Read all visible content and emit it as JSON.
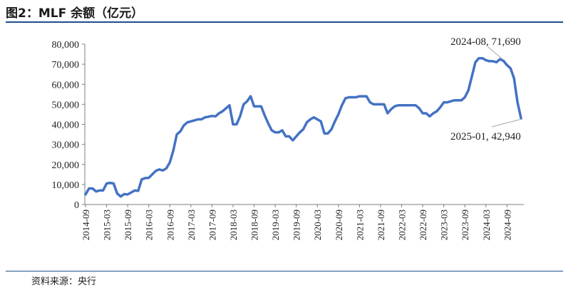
{
  "title": "图2：MLF 余额（亿元）",
  "source": "资料来源：央行",
  "chart_data": {
    "type": "line",
    "title": "MLF 余额（亿元）",
    "xlabel": "",
    "ylabel": "",
    "ylim": [
      0,
      80000
    ],
    "yticks": [
      "0",
      "10,000",
      "20,000",
      "30,000",
      "40,000",
      "50,000",
      "60,000",
      "70,000",
      "80,000"
    ],
    "xticks": [
      "2014-09",
      "2015-03",
      "2015-09",
      "2016-03",
      "2016-09",
      "2017-03",
      "2017-09",
      "2018-03",
      "2018-09",
      "2019-03",
      "2019-09",
      "2020-03",
      "2020-09",
      "2021-03",
      "2021-09",
      "2022-03",
      "2022-09",
      "2023-03",
      "2023-09",
      "2024-03",
      "2024-09"
    ],
    "color": "#4472c4",
    "annotations": [
      {
        "text": "2024-08, 71,690",
        "x": "2024-08",
        "y": 71690
      },
      {
        "text": "2025-01, 42,940",
        "x": "2025-01",
        "y": 42940
      }
    ],
    "series": [
      {
        "x": [
          "2014-09",
          "2014-10",
          "2014-11",
          "2014-12",
          "2015-01",
          "2015-02",
          "2015-03",
          "2015-04",
          "2015-05",
          "2015-06",
          "2015-07",
          "2015-08",
          "2015-09",
          "2015-10",
          "2015-11",
          "2015-12",
          "2016-01",
          "2016-02",
          "2016-03",
          "2016-04",
          "2016-05",
          "2016-06",
          "2016-07",
          "2016-08",
          "2016-09",
          "2016-10",
          "2016-11",
          "2016-12",
          "2017-01",
          "2017-02",
          "2017-03",
          "2017-04",
          "2017-05",
          "2017-06",
          "2017-07",
          "2017-08",
          "2017-09",
          "2017-10",
          "2017-11",
          "2017-12",
          "2018-01",
          "2018-02",
          "2018-03",
          "2018-04",
          "2018-05",
          "2018-06",
          "2018-07",
          "2018-08",
          "2018-09",
          "2018-10",
          "2018-11",
          "2018-12",
          "2019-01",
          "2019-02",
          "2019-03",
          "2019-04",
          "2019-05",
          "2019-06",
          "2019-07",
          "2019-08",
          "2019-09",
          "2019-10",
          "2019-11",
          "2019-12",
          "2020-01",
          "2020-02",
          "2020-03",
          "2020-04",
          "2020-05",
          "2020-06",
          "2020-07",
          "2020-08",
          "2020-09",
          "2020-10",
          "2020-11",
          "2020-12",
          "2021-01",
          "2021-02",
          "2021-03",
          "2021-04",
          "2021-05",
          "2021-06",
          "2021-07",
          "2021-08",
          "2021-09",
          "2021-10",
          "2021-11",
          "2021-12",
          "2022-01",
          "2022-02",
          "2022-03",
          "2022-04",
          "2022-05",
          "2022-06",
          "2022-07",
          "2022-08",
          "2022-09",
          "2022-10",
          "2022-11",
          "2022-12",
          "2023-01",
          "2023-02",
          "2023-03",
          "2023-04",
          "2023-05",
          "2023-06",
          "2023-07",
          "2023-08",
          "2023-09",
          "2023-10",
          "2023-11",
          "2023-12",
          "2024-01",
          "2024-02",
          "2024-03",
          "2024-04",
          "2024-05",
          "2024-06",
          "2024-07",
          "2024-08",
          "2024-09",
          "2024-10",
          "2024-11",
          "2024-12",
          "2025-01"
        ],
        "values": [
          5000,
          8000,
          8000,
          6500,
          7000,
          7000,
          10500,
          10800,
          10500,
          5500,
          4000,
          5200,
          5000,
          6000,
          7000,
          6800,
          12500,
          13200,
          13300,
          15000,
          16800,
          17500,
          17000,
          18000,
          21000,
          27000,
          35000,
          36500,
          39500,
          41000,
          41500,
          42000,
          42500,
          42500,
          43500,
          43800,
          44200,
          44000,
          45500,
          46500,
          48000,
          49500,
          40000,
          40000,
          44000,
          50000,
          51500,
          54000,
          49000,
          49000,
          49000,
          44500,
          40500,
          37000,
          36000,
          36000,
          37000,
          34000,
          34000,
          32000,
          34000,
          36000,
          37500,
          41000,
          42500,
          43500,
          42500,
          41500,
          35500,
          35500,
          37500,
          41500,
          45000,
          49500,
          53000,
          53500,
          53500,
          53500,
          54000,
          54000,
          54000,
          51000,
          50000,
          50000,
          50000,
          50000,
          45500,
          47500,
          49000,
          49500,
          49500,
          49500,
          49500,
          49500,
          49500,
          48000,
          45500,
          45500,
          44000,
          45500,
          46500,
          48500,
          51000,
          51000,
          51500,
          52000,
          52000,
          52000,
          53500,
          57000,
          64000,
          71000,
          73000,
          73000,
          72000,
          71500,
          71500,
          71000,
          72500,
          71690,
          69500,
          68000,
          63000,
          51000,
          42940
        ]
      }
    ]
  }
}
